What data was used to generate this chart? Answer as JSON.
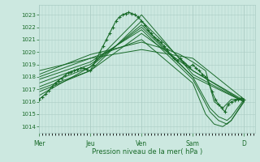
{
  "bg_color": "#cce8e0",
  "grid_color": "#aaccc4",
  "line_color": "#1a6b2a",
  "xlabel": "Pression niveau de la mer( hPa )",
  "ylim": [
    1013.5,
    1023.8
  ],
  "yticks": [
    1014,
    1015,
    1016,
    1017,
    1018,
    1019,
    1020,
    1021,
    1022,
    1023
  ],
  "day_labels": [
    "Mer",
    "Jeu",
    "Ven",
    "Sam",
    "D"
  ],
  "day_positions": [
    0,
    48,
    96,
    144,
    192
  ],
  "total_hours": 202,
  "lines": [
    {
      "x": [
        0,
        3,
        6,
        9,
        12,
        15,
        18,
        21,
        24,
        27,
        30,
        33,
        36,
        39,
        42,
        45,
        48,
        51,
        54,
        57,
        60,
        63,
        66,
        69,
        72,
        75,
        78,
        81,
        84,
        87,
        90,
        93,
        96,
        99,
        102,
        105,
        108,
        111,
        114,
        117,
        120,
        123,
        126,
        129,
        132,
        135,
        138,
        141,
        144,
        147,
        150,
        153,
        156,
        159,
        162,
        165,
        168,
        171,
        174,
        177,
        180,
        183,
        186,
        189,
        192
      ],
      "y": [
        1016.2,
        1016.4,
        1016.6,
        1016.9,
        1017.2,
        1017.5,
        1017.7,
        1017.9,
        1018.1,
        1018.3,
        1018.4,
        1018.5,
        1018.6,
        1018.7,
        1018.7,
        1018.6,
        1018.5,
        1019.0,
        1019.5,
        1020.0,
        1020.5,
        1021.0,
        1021.5,
        1022.0,
        1022.5,
        1022.8,
        1023.0,
        1023.1,
        1023.2,
        1023.1,
        1023.0,
        1022.8,
        1022.5,
        1022.2,
        1021.8,
        1021.5,
        1021.2,
        1021.0,
        1020.8,
        1020.5,
        1020.2,
        1019.8,
        1019.5,
        1019.3,
        1019.5,
        1019.2,
        1019.0,
        1018.8,
        1019.0,
        1018.7,
        1018.5,
        1018.2,
        1018.0,
        1017.5,
        1016.8,
        1016.2,
        1015.8,
        1015.5,
        1015.2,
        1015.8,
        1016.0,
        1016.1,
        1016.2,
        1016.3,
        1016.2
      ]
    },
    {
      "x": [
        0,
        48,
        96,
        144,
        192
      ],
      "y": [
        1016.5,
        1018.8,
        1023.0,
        1018.2,
        1016.0
      ]
    },
    {
      "x": [
        0,
        48,
        96,
        144,
        192
      ],
      "y": [
        1016.8,
        1018.5,
        1022.5,
        1018.5,
        1016.1
      ]
    },
    {
      "x": [
        0,
        48,
        96,
        144,
        192
      ],
      "y": [
        1017.0,
        1018.5,
        1021.5,
        1018.5,
        1016.0
      ]
    },
    {
      "x": [
        0,
        48,
        96,
        144,
        192
      ],
      "y": [
        1017.2,
        1018.8,
        1022.2,
        1018.0,
        1016.0
      ]
    },
    {
      "x": [
        0,
        48,
        96,
        144,
        160,
        168,
        176,
        180,
        192
      ],
      "y": [
        1017.5,
        1019.0,
        1022.0,
        1018.0,
        1015.5,
        1014.8,
        1014.5,
        1014.8,
        1016.2
      ]
    },
    {
      "x": [
        0,
        48,
        96,
        144,
        160,
        168,
        176,
        180,
        192
      ],
      "y": [
        1017.8,
        1019.2,
        1021.8,
        1017.8,
        1015.2,
        1014.5,
        1014.2,
        1014.5,
        1016.0
      ]
    },
    {
      "x": [
        0,
        48,
        96,
        144,
        156,
        164,
        172,
        180,
        192
      ],
      "y": [
        1018.0,
        1019.5,
        1021.0,
        1017.5,
        1015.0,
        1014.2,
        1014.0,
        1014.5,
        1016.1
      ]
    },
    {
      "x": [
        0,
        48,
        96,
        120,
        132,
        144,
        156,
        164,
        172,
        180,
        192
      ],
      "y": [
        1018.2,
        1019.8,
        1020.8,
        1020.2,
        1019.8,
        1019.2,
        1018.5,
        1016.0,
        1015.5,
        1016.2,
        1016.2
      ]
    },
    {
      "x": [
        0,
        48,
        96,
        144,
        192
      ],
      "y": [
        1018.5,
        1019.5,
        1020.2,
        1019.5,
        1016.2
      ]
    }
  ]
}
